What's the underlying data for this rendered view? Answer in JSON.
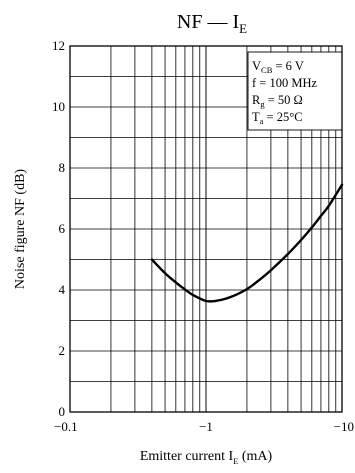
{
  "chart_data": {
    "type": "line",
    "title": {
      "main": "NF — I",
      "sub": "E"
    },
    "xlabel": {
      "main": "Emitter current  I",
      "sub": "E",
      "unit": "(mA)"
    },
    "ylabel": "Noise figure  NF  (dB)",
    "x_scale": "log",
    "xlim": [
      -0.1,
      -10
    ],
    "ylim": [
      0,
      12
    ],
    "x_ticks": [
      {
        "value": -0.1,
        "label": "−0.1"
      },
      {
        "value": -1,
        "label": "−1"
      },
      {
        "value": -10,
        "label": "−10"
      }
    ],
    "y_ticks": [
      {
        "value": 0,
        "label": "0"
      },
      {
        "value": 2,
        "label": "2"
      },
      {
        "value": 4,
        "label": "4"
      },
      {
        "value": 6,
        "label": "6"
      },
      {
        "value": 8,
        "label": "8"
      },
      {
        "value": 10,
        "label": "10"
      },
      {
        "value": 12,
        "label": "12"
      }
    ],
    "grid": true,
    "conditions": [
      {
        "main": "V",
        "sub": "CB",
        "rest": " = 6 V"
      },
      {
        "main": "f = 100 MHz",
        "sub": "",
        "rest": ""
      },
      {
        "main": "R",
        "sub": "g",
        "rest": " = 50 Ω"
      },
      {
        "main": "T",
        "sub": "a",
        "rest": " = 25°C"
      }
    ],
    "series": [
      {
        "x": [
          -0.4,
          -0.5,
          -0.6,
          -0.7,
          -0.8,
          -1.0,
          -1.2,
          -1.5,
          -2.0,
          -2.5,
          -3.0,
          -4.0,
          -5.0,
          -6.0,
          -7.0,
          -8.0,
          -10.0
        ],
        "y": [
          5.0,
          4.55,
          4.25,
          4.02,
          3.84,
          3.64,
          3.65,
          3.76,
          4.03,
          4.35,
          4.65,
          5.18,
          5.64,
          6.05,
          6.43,
          6.76,
          7.45
        ],
        "color": "#000000"
      }
    ]
  }
}
